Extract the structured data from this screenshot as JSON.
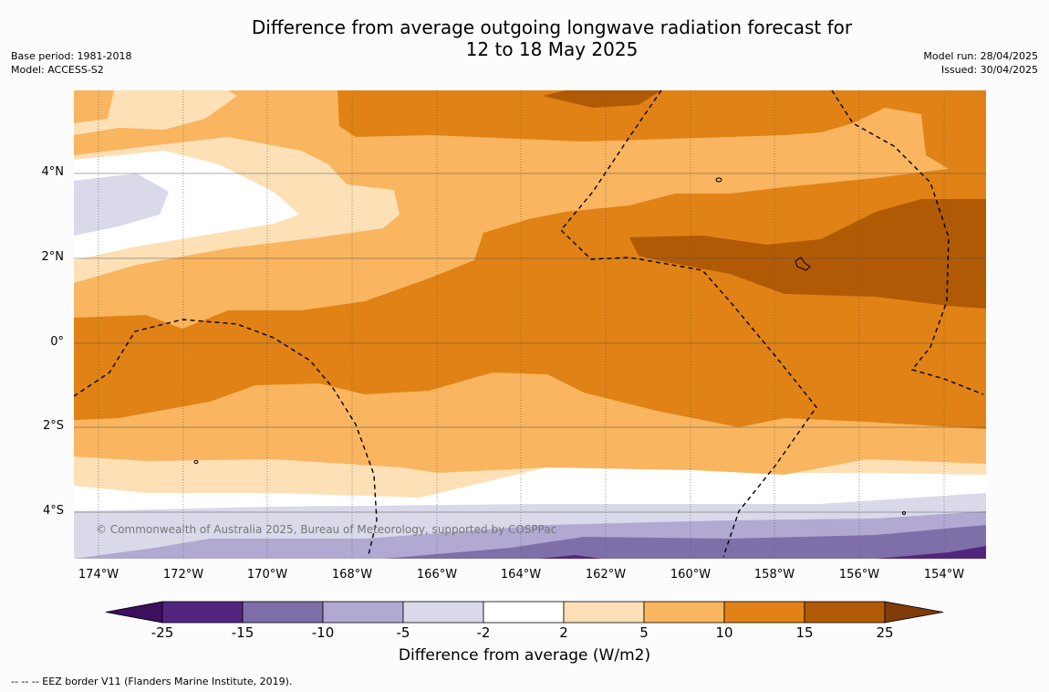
{
  "title_line1": "Difference from average outgoing longwave radiation forecast for",
  "title_line2": "12 to 18 May 2025",
  "base_period": "Base period: 1981-2018",
  "model": "Model: ACCESS-S2",
  "model_run": "Model run: 28/04/2025",
  "issued": "Issued: 30/04/2025",
  "lat_labels": [
    "4°N",
    "2°N",
    "0°",
    "2°S",
    "4°S"
  ],
  "lon_labels": [
    "174°W",
    "172°W",
    "170°W",
    "168°W",
    "166°W",
    "164°W",
    "162°W",
    "160°W",
    "158°W",
    "156°W",
    "154°W"
  ],
  "copyright": "© Commonwealth of Australia 2025, Bureau of Meteorology, supported by COSPPac",
  "colorbar": {
    "title": "Difference from average (W/m2)",
    "ticks": [
      "-25",
      "-15",
      "-10",
      "-5",
      "-2",
      "2",
      "5",
      "10",
      "15",
      "25"
    ],
    "colors": [
      "#3c0f5f",
      "#52267f",
      "#7f6fa9",
      "#b1a9d2",
      "#d9d9ea",
      "#ffffff",
      "#fde0b6",
      "#f9b55f",
      "#e08215",
      "#b15a06",
      "#7f3b08"
    ]
  },
  "legend_text": "--  --  -- EEZ border V11 (Flanders Marine Institute, 2019)."
}
